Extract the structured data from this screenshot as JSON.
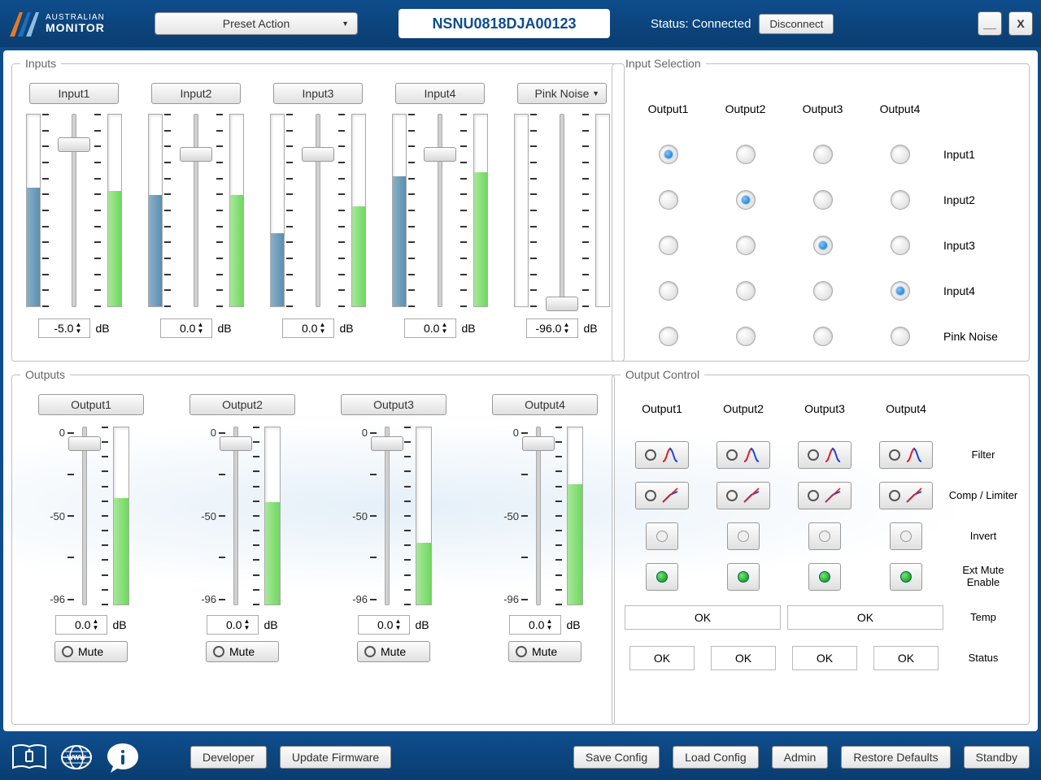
{
  "colors": {
    "header_bg": "#0e4d8c",
    "accent_blue": "#5a8fb0",
    "meter_green": "#6fd85f",
    "led_green": "#0a8a0a",
    "radio_blue": "#0a6fc2",
    "fg": "#333333"
  },
  "header": {
    "brand_line1": "AUSTRALIAN",
    "brand_line2": "MONITOR",
    "preset_label": "Preset Action",
    "device_id": "NSNU0818DJA00123",
    "status_label": "Status: Connected",
    "disconnect_label": "Disconnect",
    "minimize": "__",
    "close": "X"
  },
  "inputs": {
    "legend": "Inputs",
    "channels": [
      {
        "label": "Input1",
        "db": "-5.0",
        "slider_pos_pct": 12,
        "meter_l_pct": 62,
        "meter_r_pct": 60,
        "dropdown": false
      },
      {
        "label": "Input2",
        "db": "0.0",
        "slider_pos_pct": 17,
        "meter_l_pct": 58,
        "meter_r_pct": 58,
        "dropdown": false
      },
      {
        "label": "Input3",
        "db": "0.0",
        "slider_pos_pct": 17,
        "meter_l_pct": 38,
        "meter_r_pct": 52,
        "dropdown": false
      },
      {
        "label": "Input4",
        "db": "0.0",
        "slider_pos_pct": 17,
        "meter_l_pct": 68,
        "meter_r_pct": 70,
        "dropdown": false
      },
      {
        "label": "Pink Noise",
        "db": "-96.0",
        "slider_pos_pct": 95,
        "meter_l_pct": 0,
        "meter_r_pct": 0,
        "dropdown": true
      }
    ],
    "db_unit": "dB"
  },
  "outputs": {
    "legend": "Outputs",
    "scale": [
      "0",
      "",
      "-50",
      "",
      "-96"
    ],
    "channels": [
      {
        "label": "Output1",
        "db": "0.0",
        "slider_pos_pct": 5,
        "meter_pct": 60
      },
      {
        "label": "Output2",
        "db": "0.0",
        "slider_pos_pct": 5,
        "meter_pct": 58
      },
      {
        "label": "Output3",
        "db": "0.0",
        "slider_pos_pct": 5,
        "meter_pct": 35
      },
      {
        "label": "Output4",
        "db": "0.0",
        "slider_pos_pct": 5,
        "meter_pct": 68
      }
    ],
    "db_unit": "dB",
    "mute_label": "Mute"
  },
  "matrix": {
    "legend": "Input Selection",
    "cols": [
      "Output1",
      "Output2",
      "Output3",
      "Output4"
    ],
    "rows": [
      "Input1",
      "Input2",
      "Input3",
      "Input4",
      "Pink Noise"
    ],
    "selected": [
      [
        0,
        0
      ],
      [
        1,
        1
      ],
      [
        2,
        2
      ],
      [
        3,
        3
      ]
    ]
  },
  "octrl": {
    "legend": "Output Control",
    "cols": [
      "Output1",
      "Output2",
      "Output3",
      "Output4"
    ],
    "rows": {
      "filter": "Filter",
      "comp": "Comp / Limiter",
      "invert": "Invert",
      "extmute": "Ext Mute Enable",
      "temp": "Temp",
      "status": "Status"
    },
    "invert_on": [
      false,
      false,
      false,
      false
    ],
    "extmute_on": [
      true,
      true,
      true,
      true
    ],
    "temp": [
      "OK",
      "OK"
    ],
    "status": [
      "OK",
      "OK",
      "OK",
      "OK"
    ]
  },
  "footer": {
    "developer": "Developer",
    "update_fw": "Update Firmware",
    "save": "Save Config",
    "load": "Load Config",
    "admin": "Admin",
    "restore": "Restore Defaults",
    "standby": "Standby"
  }
}
